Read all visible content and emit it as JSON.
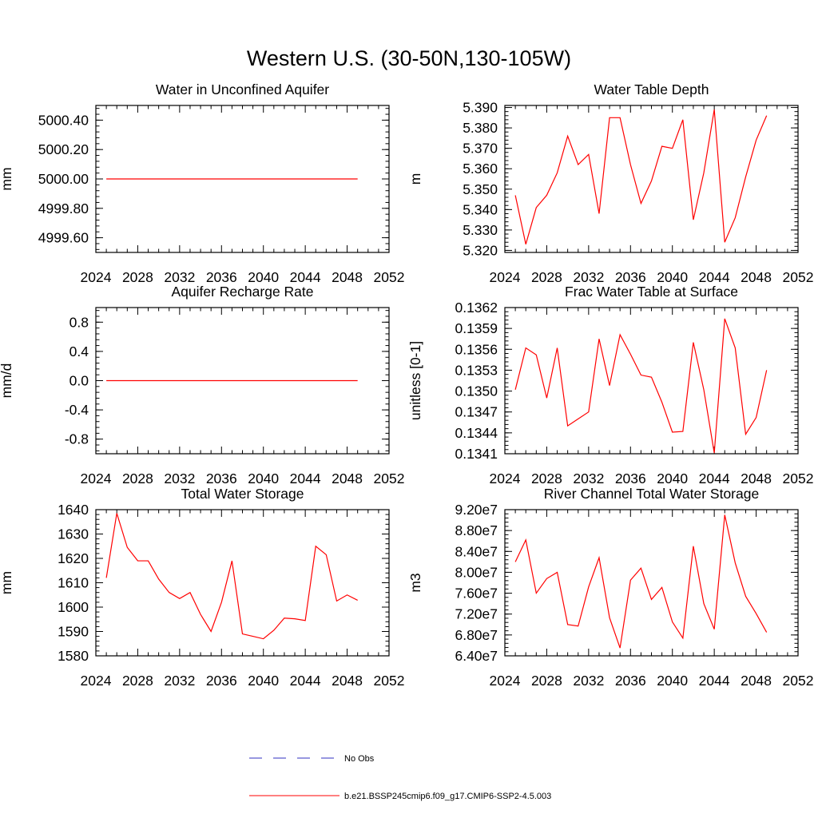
{
  "page_title": "Western U.S. (30-50N,130-105W)",
  "colors": {
    "model": "#ff0000",
    "obs": "#3030c0",
    "axis": "#000000"
  },
  "legend": {
    "obs_label": "No Obs",
    "model_label": "b.e21.BSSP245cmip6.f09_g17.CMIP6-SSP2-4.5.003"
  },
  "chart_data": [
    {
      "type": "line",
      "title": "Water in Unconfined Aquifer",
      "xlabel": "",
      "ylabel": "mm",
      "xlim": [
        2024,
        2052
      ],
      "xticks": [
        "2024",
        "2028",
        "2032",
        "2036",
        "2040",
        "2044",
        "2048",
        "2052"
      ],
      "ylim": [
        4999.5,
        5000.5
      ],
      "yticks": [
        "4999.60",
        "4999.80",
        "5000.00",
        "5000.20",
        "5000.40"
      ],
      "x": [
        2025,
        2049
      ],
      "series": [
        {
          "name": "b.e21.BSSP245cmip6.f09_g17.CMIP6-SSP2-4.5.003",
          "values": [
            5000.0,
            5000.0
          ]
        }
      ]
    },
    {
      "type": "line",
      "title": "Water Table Depth",
      "xlabel": "",
      "ylabel": "m",
      "xlim": [
        2024,
        2052
      ],
      "xticks": [
        "2024",
        "2028",
        "2032",
        "2036",
        "2040",
        "2044",
        "2048",
        "2052"
      ],
      "ylim": [
        5.319,
        5.391
      ],
      "yticks": [
        "5.320",
        "5.330",
        "5.340",
        "5.350",
        "5.360",
        "5.370",
        "5.380",
        "5.390"
      ],
      "x": [
        2025,
        2026,
        2027,
        2028,
        2029,
        2030,
        2031,
        2032,
        2033,
        2034,
        2035,
        2036,
        2037,
        2038,
        2039,
        2040,
        2041,
        2042,
        2043,
        2044,
        2045,
        2046,
        2047,
        2048,
        2049
      ],
      "series": [
        {
          "name": "b.e21.BSSP245cmip6.f09_g17.CMIP6-SSP2-4.5.003",
          "values": [
            5.347,
            5.323,
            5.341,
            5.347,
            5.358,
            5.376,
            5.362,
            5.367,
            5.338,
            5.385,
            5.385,
            5.362,
            5.343,
            5.354,
            5.371,
            5.37,
            5.384,
            5.335,
            5.358,
            5.389,
            5.324,
            5.336,
            5.356,
            5.374,
            5.386
          ]
        }
      ]
    },
    {
      "type": "line",
      "title": "Aquifer Recharge Rate",
      "xlabel": "",
      "ylabel": "mm/d",
      "xlim": [
        2024,
        2052
      ],
      "xticks": [
        "2024",
        "2028",
        "2032",
        "2036",
        "2040",
        "2044",
        "2048",
        "2052"
      ],
      "ylim": [
        -1.0,
        1.0
      ],
      "yticks": [
        "-0.8",
        "-0.4",
        "0.0",
        "0.4",
        "0.8"
      ],
      "x": [
        2025,
        2049
      ],
      "series": [
        {
          "name": "b.e21.BSSP245cmip6.f09_g17.CMIP6-SSP2-4.5.003",
          "values": [
            0.0,
            0.0
          ]
        }
      ]
    },
    {
      "type": "line",
      "title": "Frac Water Table at Surface",
      "xlabel": "",
      "ylabel": "unitless [0-1]",
      "xlim": [
        2024,
        2052
      ],
      "xticks": [
        "2024",
        "2028",
        "2032",
        "2036",
        "2040",
        "2044",
        "2048",
        "2052"
      ],
      "ylim": [
        0.1341,
        0.1362
      ],
      "yticks": [
        "0.1341",
        "0.1344",
        "0.1347",
        "0.1350",
        "0.1353",
        "0.1356",
        "0.1359",
        "0.1362"
      ],
      "x": [
        2025,
        2026,
        2027,
        2028,
        2029,
        2030,
        2031,
        2032,
        2033,
        2034,
        2035,
        2036,
        2037,
        2038,
        2039,
        2040,
        2041,
        2042,
        2043,
        2044,
        2045,
        2046,
        2047,
        2048,
        2049
      ],
      "series": [
        {
          "name": "b.e21.BSSP245cmip6.f09_g17.CMIP6-SSP2-4.5.003",
          "values": [
            0.13502,
            0.13562,
            0.13552,
            0.1349,
            0.13562,
            0.1345,
            0.1346,
            0.1347,
            0.13575,
            0.13508,
            0.13581,
            0.13553,
            0.13523,
            0.1352,
            0.13484,
            0.13441,
            0.13442,
            0.1357,
            0.13502,
            0.13411,
            0.13604,
            0.13562,
            0.13438,
            0.13462,
            0.1353
          ]
        }
      ]
    },
    {
      "type": "line",
      "title": "Total Water Storage",
      "xlabel": "",
      "ylabel": "mm",
      "xlim": [
        2024,
        2052
      ],
      "xticks": [
        "2024",
        "2028",
        "2032",
        "2036",
        "2040",
        "2044",
        "2048",
        "2052"
      ],
      "ylim": [
        1580,
        1640
      ],
      "yticks": [
        "1580",
        "1590",
        "1600",
        "1610",
        "1620",
        "1630",
        "1640"
      ],
      "x": [
        2025,
        2026,
        2027,
        2028,
        2029,
        2030,
        2031,
        2032,
        2033,
        2034,
        2035,
        2036,
        2037,
        2038,
        2039,
        2040,
        2041,
        2042,
        2043,
        2044,
        2045,
        2046,
        2047,
        2048,
        2049
      ],
      "series": [
        {
          "name": "b.e21.BSSP245cmip6.f09_g17.CMIP6-SSP2-4.5.003",
          "values": [
            1612,
            1638.5,
            1624.5,
            1619,
            1619,
            1611.5,
            1606,
            1603.5,
            1606,
            1597,
            1590,
            1602,
            1619,
            1589,
            1588,
            1587,
            1590.5,
            1595.5,
            1595.2,
            1594.5,
            1625,
            1621.5,
            1602.5,
            1605,
            1602.8
          ]
        }
      ]
    },
    {
      "type": "line",
      "title": "River Channel Total Water Storage",
      "xlabel": "",
      "ylabel": "m3",
      "xlim": [
        2024,
        2052
      ],
      "xticks": [
        "2024",
        "2028",
        "2032",
        "2036",
        "2040",
        "2044",
        "2048",
        "2052"
      ],
      "ylim": [
        64000000,
        92000000
      ],
      "yticks": [
        "6.40e7",
        "6.80e7",
        "7.20e7",
        "7.60e7",
        "8.00e7",
        "8.40e7",
        "8.80e7",
        "9.20e7"
      ],
      "x": [
        2025,
        2026,
        2027,
        2028,
        2029,
        2030,
        2031,
        2032,
        2033,
        2034,
        2035,
        2036,
        2037,
        2038,
        2039,
        2040,
        2041,
        2042,
        2043,
        2044,
        2045,
        2046,
        2047,
        2048,
        2049
      ],
      "series": [
        {
          "name": "b.e21.BSSP245cmip6.f09_g17.CMIP6-SSP2-4.5.003",
          "values": [
            82000000,
            86200000,
            76000000,
            78800000,
            80000000,
            70000000,
            69700000,
            77200000,
            82800000,
            71300000,
            65500000,
            78500000,
            80800000,
            74800000,
            77100000,
            70500000,
            67400000,
            85000000,
            74000000,
            69100000,
            91000000,
            81800000,
            75400000,
            72100000,
            68500000
          ]
        }
      ]
    }
  ]
}
